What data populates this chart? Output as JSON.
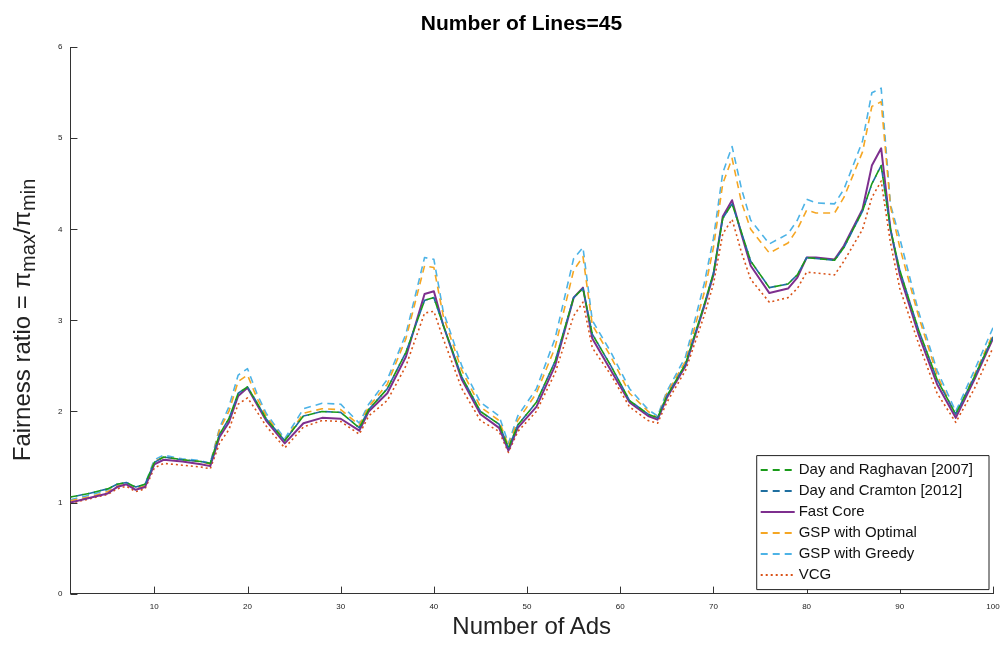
{
  "chart_data": {
    "type": "line",
    "title": "Number of Lines=45",
    "xlabel": "Number of Ads",
    "ylabel": "Fairness ratio = π$_{max}$/π$_{min}$",
    "x": [
      1,
      3,
      5,
      6,
      7,
      8,
      9,
      10,
      11,
      13,
      15,
      16,
      17,
      18,
      19,
      20,
      21,
      22,
      24,
      26,
      28,
      30,
      32,
      33,
      35,
      37,
      39,
      40,
      41,
      43,
      45,
      47,
      48,
      49,
      51,
      53,
      55,
      56,
      57,
      59,
      61,
      63,
      64,
      65,
      67,
      69,
      70,
      71,
      72,
      73,
      74,
      76,
      78,
      79,
      80,
      81,
      83,
      84,
      86,
      87,
      88,
      89,
      90,
      92,
      94,
      96,
      98,
      100
    ],
    "series": [
      {
        "name": "Day and Raghavan [2007]",
        "color": "#1a9b1a",
        "line_style": "dashed",
        "values": [
          1.06,
          1.1,
          1.15,
          1.2,
          1.22,
          1.17,
          1.2,
          1.44,
          1.5,
          1.47,
          1.45,
          1.43,
          1.75,
          1.92,
          2.2,
          2.27,
          2.1,
          1.92,
          1.68,
          1.95,
          2.0,
          1.99,
          1.82,
          2.02,
          2.25,
          2.65,
          3.22,
          3.25,
          2.95,
          2.38,
          2.0,
          1.86,
          1.6,
          1.85,
          2.1,
          2.55,
          3.25,
          3.35,
          2.85,
          2.5,
          2.12,
          1.97,
          1.93,
          2.17,
          2.52,
          3.17,
          3.52,
          4.12,
          4.28,
          3.97,
          3.65,
          3.36,
          3.4,
          3.5,
          3.69,
          3.68,
          3.66,
          3.8,
          4.2,
          4.5,
          4.7,
          4.0,
          3.55,
          2.9,
          2.35,
          1.97,
          2.38,
          2.82
        ]
      },
      {
        "name": "Day and Cramton [2012]",
        "color": "#1f6fa0",
        "line_style": "dashed",
        "values": [
          1.06,
          1.1,
          1.15,
          1.2,
          1.22,
          1.17,
          1.2,
          1.44,
          1.5,
          1.47,
          1.45,
          1.43,
          1.75,
          1.92,
          2.2,
          2.27,
          2.1,
          1.92,
          1.68,
          1.95,
          2.0,
          1.99,
          1.82,
          2.02,
          2.25,
          2.65,
          3.22,
          3.25,
          2.95,
          2.38,
          2.0,
          1.86,
          1.6,
          1.85,
          2.1,
          2.55,
          3.25,
          3.35,
          2.85,
          2.5,
          2.12,
          1.97,
          1.93,
          2.17,
          2.52,
          3.17,
          3.52,
          4.12,
          4.28,
          3.97,
          3.65,
          3.36,
          3.4,
          3.5,
          3.69,
          3.68,
          3.66,
          3.8,
          4.2,
          4.5,
          4.7,
          4.0,
          3.55,
          2.9,
          2.35,
          1.97,
          2.38,
          2.82
        ]
      },
      {
        "name": "Fast Core",
        "color": "#7e2f8e",
        "line_style": "solid",
        "values": [
          1.0,
          1.05,
          1.1,
          1.17,
          1.2,
          1.14,
          1.17,
          1.42,
          1.47,
          1.45,
          1.42,
          1.4,
          1.72,
          1.88,
          2.17,
          2.26,
          2.08,
          1.9,
          1.65,
          1.87,
          1.93,
          1.92,
          1.79,
          2.0,
          2.2,
          2.6,
          3.29,
          3.32,
          2.95,
          2.35,
          1.97,
          1.82,
          1.57,
          1.82,
          2.05,
          2.5,
          3.25,
          3.36,
          2.8,
          2.45,
          2.1,
          1.95,
          1.91,
          2.15,
          2.5,
          3.15,
          3.5,
          4.14,
          4.32,
          3.95,
          3.6,
          3.3,
          3.35,
          3.47,
          3.69,
          3.69,
          3.67,
          3.82,
          4.22,
          4.7,
          4.89,
          4.0,
          3.5,
          2.85,
          2.3,
          1.93,
          2.35,
          2.8
        ]
      },
      {
        "name": "GSP with Optimal",
        "color": "#f5a623",
        "line_style": "dashed",
        "values": [
          1.02,
          1.06,
          1.12,
          1.18,
          1.2,
          1.15,
          1.18,
          1.45,
          1.5,
          1.47,
          1.45,
          1.42,
          1.8,
          2.0,
          2.33,
          2.4,
          2.15,
          1.95,
          1.68,
          1.98,
          2.03,
          2.02,
          1.85,
          2.05,
          2.3,
          2.8,
          3.6,
          3.58,
          3.05,
          2.45,
          2.05,
          1.9,
          1.62,
          1.9,
          2.2,
          2.7,
          3.55,
          3.7,
          2.95,
          2.6,
          2.2,
          2.0,
          1.93,
          2.2,
          2.55,
          3.3,
          3.8,
          4.5,
          4.78,
          4.3,
          4.0,
          3.74,
          3.85,
          4.0,
          4.21,
          4.18,
          4.18,
          4.35,
          4.85,
          5.35,
          5.4,
          4.25,
          3.8,
          3.05,
          2.4,
          1.95,
          2.4,
          2.85
        ]
      },
      {
        "name": "GSP with Greedy",
        "color": "#4db3e6",
        "line_style": "dashed",
        "values": [
          1.03,
          1.08,
          1.14,
          1.2,
          1.22,
          1.16,
          1.2,
          1.47,
          1.52,
          1.48,
          1.46,
          1.43,
          1.82,
          2.05,
          2.4,
          2.47,
          2.2,
          1.98,
          1.7,
          2.03,
          2.09,
          2.08,
          1.87,
          2.08,
          2.35,
          2.85,
          3.69,
          3.67,
          3.1,
          2.5,
          2.1,
          1.95,
          1.65,
          1.95,
          2.25,
          2.8,
          3.68,
          3.8,
          3.0,
          2.65,
          2.25,
          2.02,
          1.95,
          2.22,
          2.6,
          3.4,
          3.9,
          4.62,
          4.91,
          4.45,
          4.1,
          3.84,
          3.95,
          4.1,
          4.33,
          4.29,
          4.28,
          4.44,
          4.97,
          5.5,
          5.55,
          4.27,
          3.9,
          3.1,
          2.45,
          2.0,
          2.45,
          2.92
        ]
      },
      {
        "name": "VCG",
        "color": "#d95319",
        "line_style": "dotted",
        "values": [
          0.99,
          1.04,
          1.09,
          1.15,
          1.18,
          1.12,
          1.15,
          1.38,
          1.43,
          1.41,
          1.39,
          1.37,
          1.65,
          1.8,
          2.08,
          2.15,
          2.0,
          1.84,
          1.6,
          1.83,
          1.9,
          1.89,
          1.75,
          1.95,
          2.12,
          2.5,
          3.08,
          3.1,
          2.8,
          2.25,
          1.9,
          1.78,
          1.55,
          1.78,
          2.0,
          2.42,
          3.05,
          3.2,
          2.7,
          2.4,
          2.05,
          1.9,
          1.87,
          2.1,
          2.45,
          3.05,
          3.4,
          3.95,
          4.11,
          3.75,
          3.45,
          3.2,
          3.25,
          3.35,
          3.53,
          3.52,
          3.5,
          3.65,
          4.0,
          4.35,
          4.53,
          3.85,
          3.35,
          2.75,
          2.2,
          1.88,
          2.25,
          2.7
        ]
      }
    ],
    "xlim": [
      1,
      100
    ],
    "xticks": [
      10,
      20,
      30,
      40,
      50,
      60,
      70,
      80,
      90,
      100
    ],
    "ylim": [
      0,
      6
    ],
    "yticks": [
      0,
      1,
      2,
      3,
      4,
      5,
      6
    ],
    "grid": false,
    "legend": "bottom right",
    "marker": "none"
  }
}
